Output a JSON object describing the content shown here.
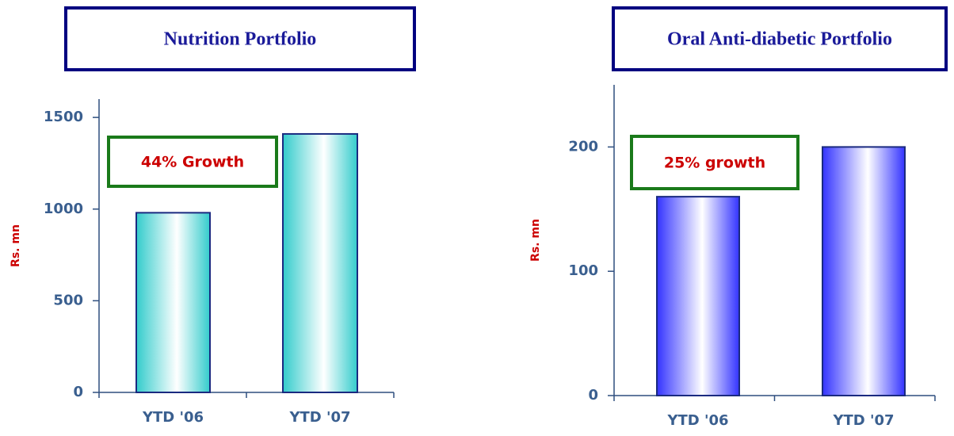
{
  "chart_data": [
    {
      "type": "bar",
      "title": "Nutrition Portfolio",
      "y_label": "Rs. mn",
      "annotation": "44% Growth",
      "categories": [
        "YTD '06",
        "YTD '07"
      ],
      "values": [
        980,
        1410
      ],
      "color": "#33cccc",
      "ylim": [
        0,
        1600
      ],
      "yticks": [
        0,
        500,
        1000,
        1500
      ]
    },
    {
      "type": "bar",
      "title": "Oral Anti-diabetic Portfolio",
      "y_label": "Rs. mn",
      "annotation": "25% growth",
      "categories": [
        "YTD '06",
        "YTD '07"
      ],
      "values": [
        160,
        200
      ],
      "color": "#3333ff",
      "ylim": [
        0,
        250
      ],
      "yticks": [
        0,
        100,
        200
      ]
    }
  ]
}
